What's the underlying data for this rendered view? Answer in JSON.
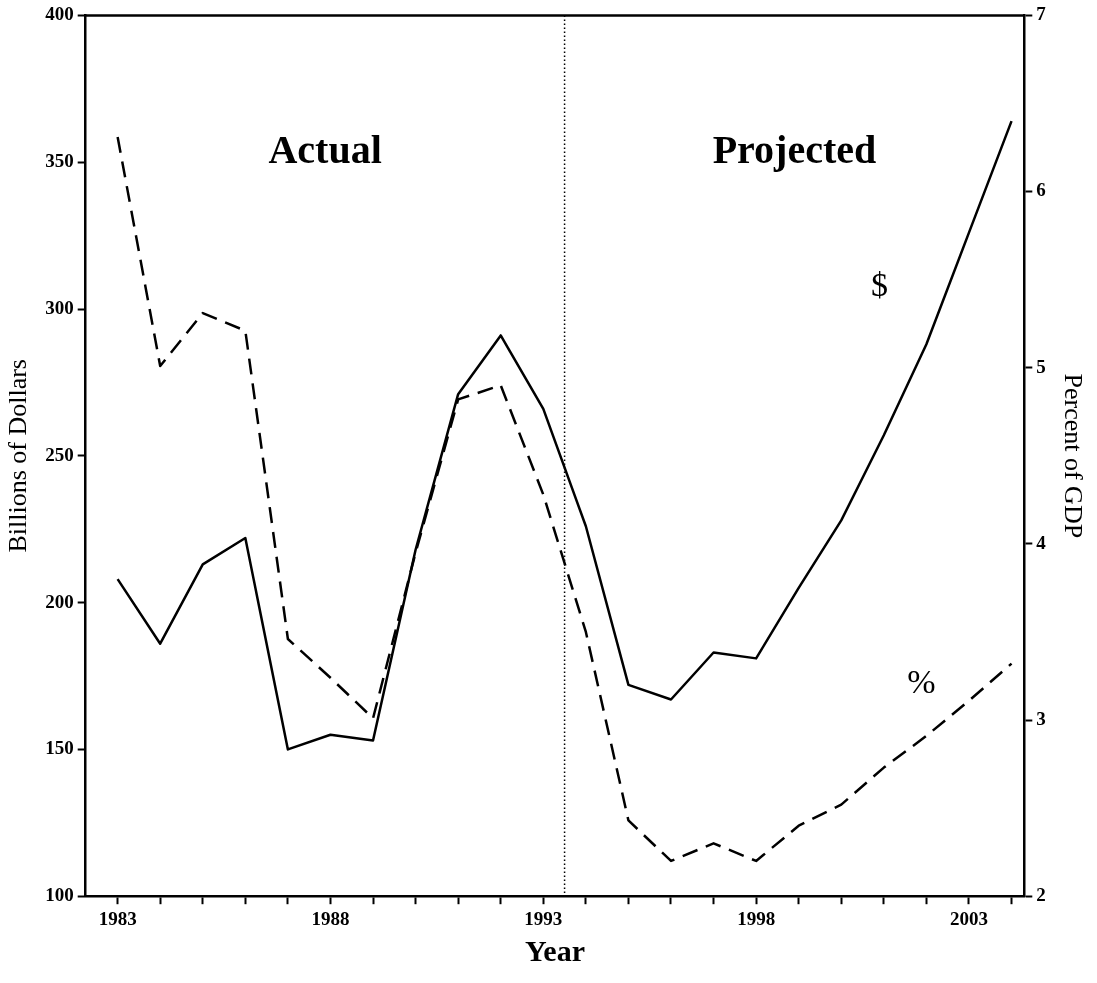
{
  "chart_data": {
    "type": "line",
    "xlabel": "Year",
    "ylabel": "Billions of Dollars",
    "y2label": "Percent of GDP",
    "x": [
      1983,
      1984,
      1985,
      1986,
      1987,
      1988,
      1989,
      1990,
      1991,
      1992,
      1993,
      1994,
      1995,
      1996,
      1997,
      1998,
      1999,
      2000,
      2001,
      2002,
      2003,
      2004
    ],
    "series": [
      {
        "name": "$",
        "color": "#000000",
        "line_style": "solid",
        "values": [
          208,
          186,
          213,
          222,
          150,
          155,
          153,
          218,
          271,
          291,
          266,
          226,
          172,
          167,
          183,
          181,
          205,
          228,
          257,
          288,
          326,
          364
        ]
      },
      {
        "name": "%",
        "color": "#000000",
        "line_style": "dashed",
        "axis": "y2",
        "values": [
          6.31,
          5.01,
          5.31,
          5.21,
          3.46,
          3.24,
          3.01,
          3.95,
          4.82,
          4.9,
          4.28,
          3.5,
          2.43,
          2.2,
          2.3,
          2.2,
          2.4,
          2.52,
          2.73,
          2.91,
          3.11,
          3.32
        ]
      }
    ],
    "xlim": [
      1982.25,
      2004.3
    ],
    "xticks": [
      1983,
      {
        "value": 1984,
        "label": null
      },
      {
        "value": 1985,
        "label": null
      },
      {
        "value": 1986,
        "label": null
      },
      {
        "value": 1987,
        "label": null
      },
      1988,
      {
        "value": 1989,
        "label": null
      },
      {
        "value": 1990,
        "label": null
      },
      {
        "value": 1991,
        "label": null
      },
      {
        "value": 1992,
        "label": null
      },
      1993,
      {
        "value": 1994,
        "label": null
      },
      {
        "value": 1995,
        "label": null
      },
      {
        "value": 1996,
        "label": null
      },
      {
        "value": 1997,
        "label": null
      },
      1998,
      {
        "value": 1999,
        "label": null
      },
      {
        "value": 2000,
        "label": null
      },
      {
        "value": 2001,
        "label": null
      },
      {
        "value": 2002,
        "label": null
      },
      2003,
      {
        "value": 2004,
        "label": null
      }
    ],
    "ylim": [
      100,
      400
    ],
    "yticks": [
      100,
      150,
      200,
      250,
      300,
      350,
      400
    ],
    "y2lim": [
      2,
      7
    ],
    "y2ticks": [
      2,
      3,
      4,
      5,
      6,
      7
    ],
    "ref_lines": [
      {
        "axis": "x",
        "value": 1993.5,
        "line_style": "dotted",
        "color": "#000000"
      }
    ],
    "annotations": [
      "Actual",
      "Projected"
    ],
    "grid": false,
    "legend": false,
    "marker": "none"
  }
}
